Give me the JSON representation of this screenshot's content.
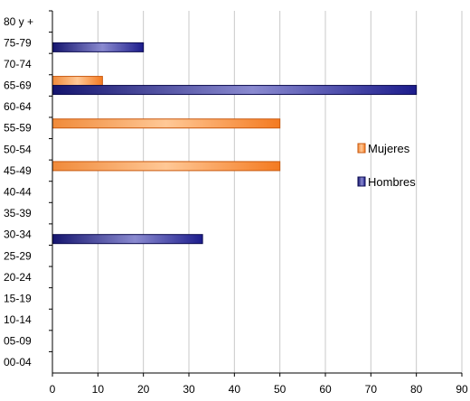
{
  "chart_data": {
    "type": "bar",
    "orientation": "horizontal",
    "categories": [
      "00-04",
      "05-09",
      "10-14",
      "15-19",
      "20-24",
      "25-29",
      "30-34",
      "35-39",
      "40-44",
      "45-49",
      "50-54",
      "55-59",
      "60-64",
      "65-69",
      "70-74",
      "75-79",
      "80 y +"
    ],
    "series": [
      {
        "name": "Mujeres",
        "color": "#f47a20",
        "values": [
          0,
          0,
          0,
          0,
          0,
          0,
          0,
          0,
          0,
          50,
          0,
          50,
          0,
          11,
          0,
          0,
          0
        ]
      },
      {
        "name": "Hombres",
        "color": "#1c1c8c",
        "values": [
          0,
          0,
          0,
          0,
          0,
          0,
          33,
          0,
          0,
          0,
          0,
          0,
          0,
          80,
          0,
          20,
          0
        ]
      }
    ],
    "xticks": [
      "0",
      "10",
      "20",
      "30",
      "40",
      "50",
      "60",
      "70",
      "80",
      "90"
    ],
    "xlim": [
      0,
      90
    ],
    "grid": true,
    "legend_position": "right",
    "title": "",
    "xlabel": "",
    "ylabel": ""
  }
}
